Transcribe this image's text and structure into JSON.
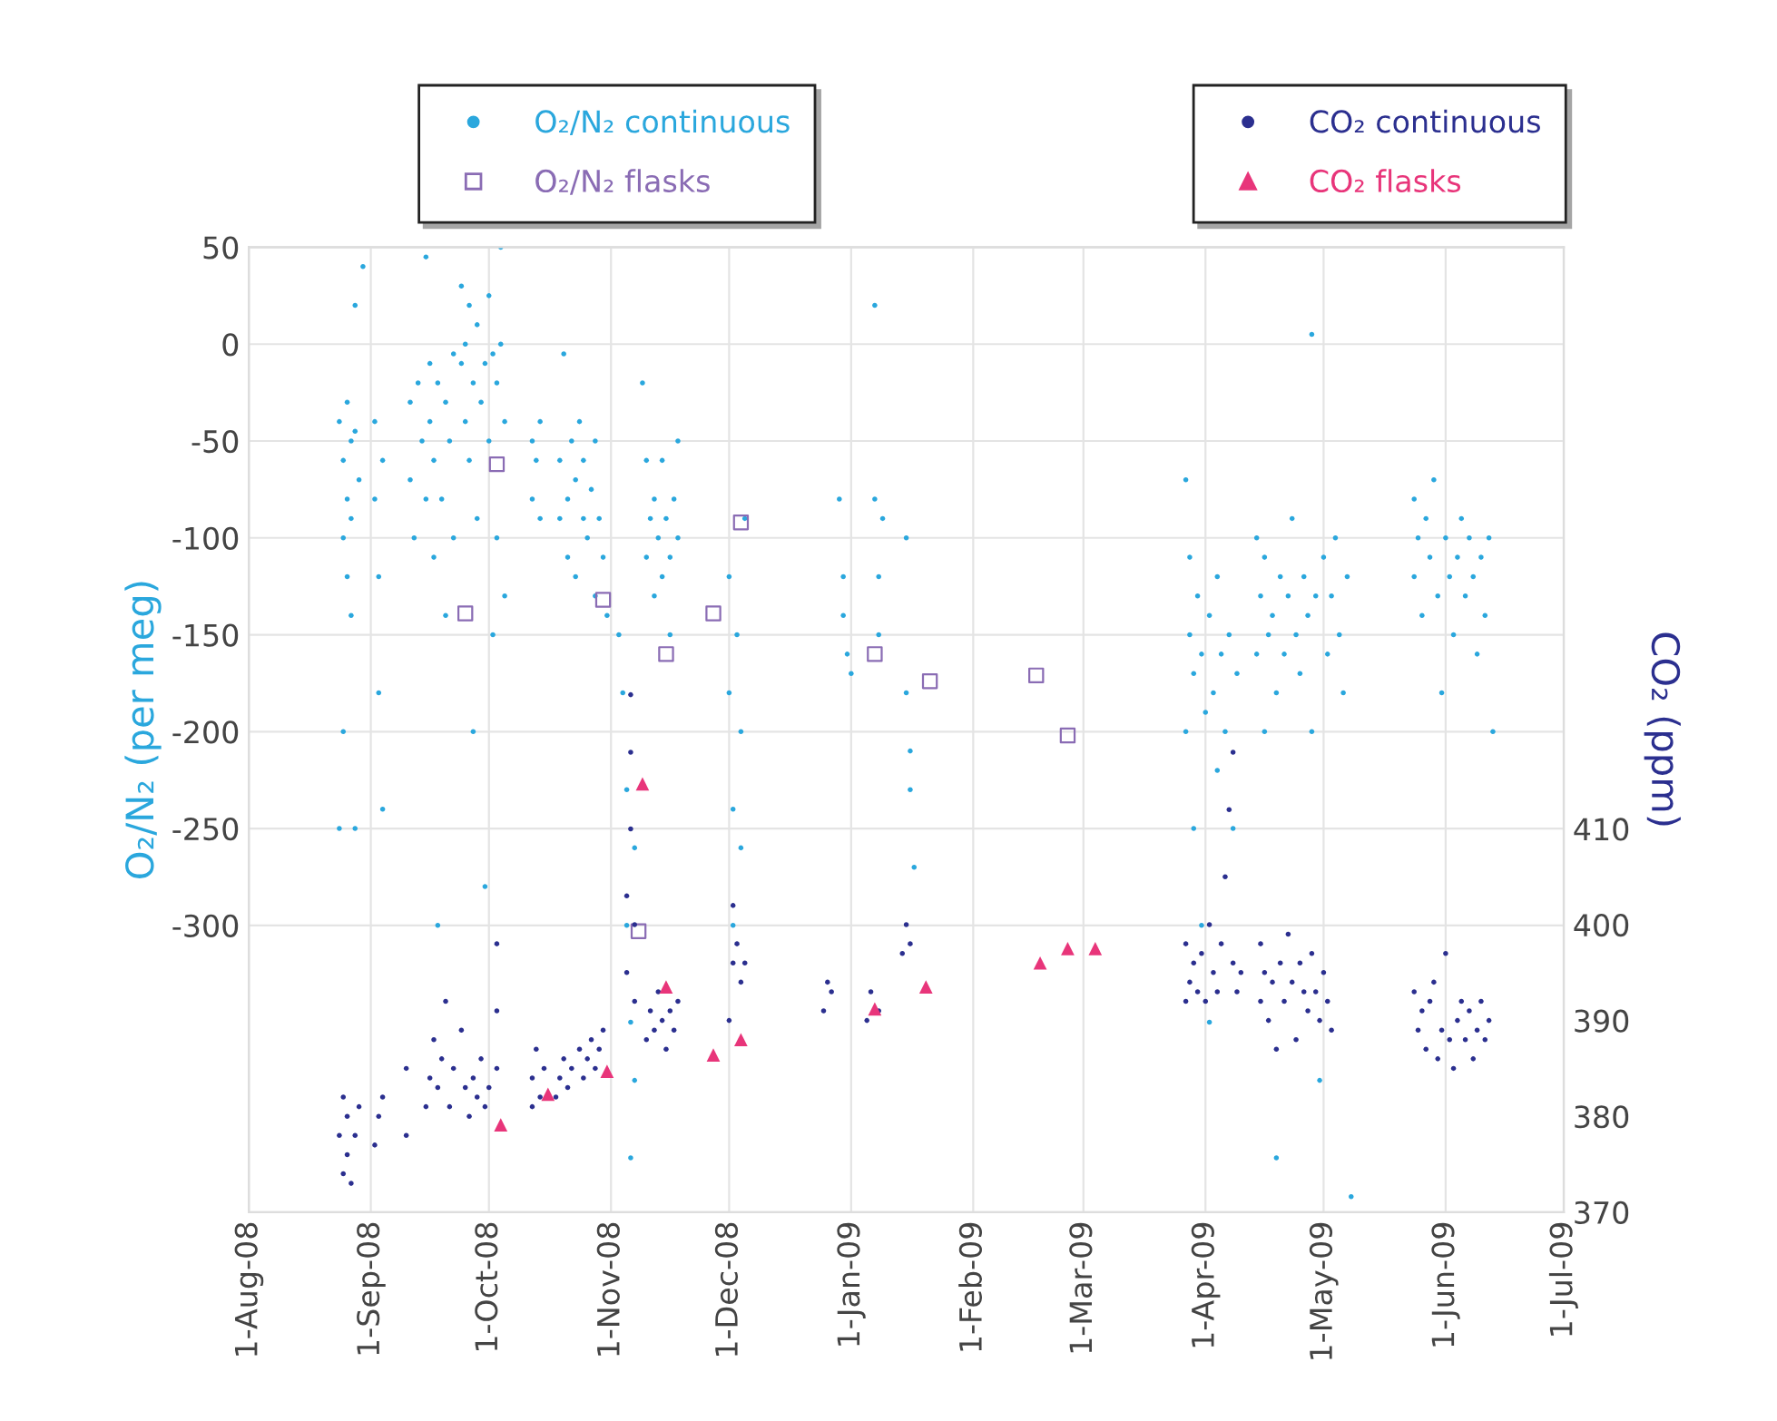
{
  "chart_data": {
    "type": "scatter",
    "ylabel": "O₂/N₂ (per meg)",
    "y2label": "CO₂ (ppm)",
    "xlim": [
      "2008-08-01",
      "2009-07-01"
    ],
    "xticks": [
      {
        "value": "2008-08-01",
        "label": "1-Aug-08"
      },
      {
        "value": "2008-09-01",
        "label": "1-Sep-08"
      },
      {
        "value": "2008-10-01",
        "label": "1-Oct-08"
      },
      {
        "value": "2008-11-01",
        "label": "1-Nov-08"
      },
      {
        "value": "2008-12-01",
        "label": "1-Dec-08"
      },
      {
        "value": "2009-01-01",
        "label": "1-Jan-09"
      },
      {
        "value": "2009-02-01",
        "label": "1-Feb-09"
      },
      {
        "value": "2009-03-01",
        "label": "1-Mar-09"
      },
      {
        "value": "2009-04-01",
        "label": "1-Apr-09"
      },
      {
        "value": "2009-05-01",
        "label": "1-May-09"
      },
      {
        "value": "2009-06-01",
        "label": "1-Jun-09"
      },
      {
        "value": "2009-07-01",
        "label": "1-Jul-09"
      }
    ],
    "ylim": [
      -448,
      50
    ],
    "yticks": [
      50,
      0,
      -50,
      -100,
      -150,
      -200,
      -250,
      -300
    ],
    "y2lim": [
      370,
      470.7
    ],
    "y2ticks": [
      370,
      380,
      390,
      400,
      410
    ],
    "grid": true,
    "legend": "top",
    "series": [
      {
        "name": "O₂/N₂ continuous",
        "color": "#2aa7dd",
        "marker": "circle",
        "x": [
          "2008-08-24",
          "2008-08-24",
          "2008-08-25",
          "2008-08-25",
          "2008-08-25",
          "2008-08-26",
          "2008-08-26",
          "2008-08-26",
          "2008-08-27",
          "2008-08-27",
          "2008-08-27",
          "2008-08-28",
          "2008-08-28",
          "2008-08-28",
          "2008-08-29",
          "2008-08-30",
          "2008-09-02",
          "2008-09-02",
          "2008-09-03",
          "2008-09-03",
          "2008-09-04",
          "2008-09-04",
          "2008-09-11",
          "2008-09-11",
          "2008-09-12",
          "2008-09-13",
          "2008-09-14",
          "2008-09-15",
          "2008-09-15",
          "2008-09-16",
          "2008-09-16",
          "2008-09-17",
          "2008-09-17",
          "2008-09-18",
          "2008-09-18",
          "2008-09-19",
          "2008-09-20",
          "2008-09-20",
          "2008-09-21",
          "2008-09-22",
          "2008-09-22",
          "2008-09-24",
          "2008-09-24",
          "2008-09-25",
          "2008-09-25",
          "2008-09-26",
          "2008-09-26",
          "2008-09-27",
          "2008-09-27",
          "2008-09-28",
          "2008-09-28",
          "2008-09-29",
          "2008-09-30",
          "2008-09-30",
          "2008-10-01",
          "2008-10-01",
          "2008-10-02",
          "2008-10-02",
          "2008-10-03",
          "2008-10-03",
          "2008-10-04",
          "2008-10-04",
          "2008-10-05",
          "2008-10-05",
          "2008-10-12",
          "2008-10-12",
          "2008-10-13",
          "2008-10-14",
          "2008-10-14",
          "2008-10-19",
          "2008-10-19",
          "2008-10-20",
          "2008-10-21",
          "2008-10-21",
          "2008-10-22",
          "2008-10-23",
          "2008-10-23",
          "2008-10-24",
          "2008-10-25",
          "2008-10-25",
          "2008-10-26",
          "2008-10-27",
          "2008-10-28",
          "2008-10-28",
          "2008-10-29",
          "2008-10-30",
          "2008-10-31",
          "2008-11-03",
          "2008-11-04",
          "2008-11-05",
          "2008-11-05",
          "2008-11-06",
          "2008-11-06",
          "2008-11-07",
          "2008-11-07",
          "2008-11-09",
          "2008-11-10",
          "2008-11-10",
          "2008-11-11",
          "2008-11-12",
          "2008-11-12",
          "2008-11-13",
          "2008-11-14",
          "2008-11-14",
          "2008-11-15",
          "2008-11-16",
          "2008-11-16",
          "2008-11-17",
          "2008-11-18",
          "2008-11-18",
          "2008-12-01",
          "2008-12-01",
          "2008-12-02",
          "2008-12-02",
          "2008-12-03",
          "2008-12-04",
          "2008-12-04",
          "2008-12-05",
          "2008-12-29",
          "2008-12-30",
          "2008-12-30",
          "2008-12-31",
          "2009-01-01",
          "2009-01-07",
          "2009-01-07",
          "2009-01-08",
          "2009-01-08",
          "2009-01-09",
          "2009-01-15",
          "2009-01-15",
          "2009-01-16",
          "2009-01-16",
          "2009-01-17",
          "2009-03-27",
          "2009-03-27",
          "2009-03-28",
          "2009-03-28",
          "2009-03-29",
          "2009-03-29",
          "2009-03-30",
          "2009-03-31",
          "2009-03-31",
          "2009-04-01",
          "2009-04-02",
          "2009-04-02",
          "2009-04-03",
          "2009-04-04",
          "2009-04-04",
          "2009-04-05",
          "2009-04-06",
          "2009-04-07",
          "2009-04-08",
          "2009-04-09",
          "2009-04-14",
          "2009-04-14",
          "2009-04-15",
          "2009-04-16",
          "2009-04-16",
          "2009-04-17",
          "2009-04-18",
          "2009-04-19",
          "2009-04-19",
          "2009-04-20",
          "2009-04-21",
          "2009-04-22",
          "2009-04-23",
          "2009-04-24",
          "2009-04-25",
          "2009-04-26",
          "2009-04-27",
          "2009-04-28",
          "2009-04-28",
          "2009-04-29",
          "2009-04-30",
          "2009-05-01",
          "2009-05-02",
          "2009-05-03",
          "2009-05-04",
          "2009-05-05",
          "2009-05-06",
          "2009-05-07",
          "2009-05-08",
          "2009-05-24",
          "2009-05-24",
          "2009-05-25",
          "2009-05-26",
          "2009-05-27",
          "2009-05-28",
          "2009-05-29",
          "2009-05-30",
          "2009-05-31",
          "2009-06-01",
          "2009-06-02",
          "2009-06-03",
          "2009-06-04",
          "2009-06-05",
          "2009-06-06",
          "2009-06-07",
          "2009-06-08",
          "2009-06-09",
          "2009-06-10",
          "2009-06-11",
          "2009-06-12",
          "2009-06-13"
        ],
        "values": [
          -40,
          -250,
          -60,
          -100,
          -200,
          -30,
          -80,
          -120,
          -50,
          -90,
          -140,
          -45,
          20,
          -250,
          -70,
          40,
          -40,
          -80,
          -120,
          -180,
          -60,
          -240,
          -30,
          -70,
          -100,
          -20,
          -50,
          -80,
          45,
          -10,
          -40,
          -110,
          -60,
          -20,
          -300,
          -80,
          -30,
          -140,
          -50,
          -100,
          -5,
          30,
          -10,
          -40,
          0,
          20,
          -60,
          -20,
          -200,
          10,
          -90,
          -30,
          -10,
          -280,
          25,
          -50,
          -5,
          -150,
          -20,
          -100,
          50,
          0,
          -40,
          -130,
          -50,
          -80,
          -60,
          -90,
          -40,
          -60,
          -90,
          -5,
          -80,
          -110,
          -50,
          -70,
          -120,
          -40,
          -90,
          -60,
          -100,
          -75,
          -130,
          -50,
          -90,
          -110,
          -140,
          -150,
          -180,
          -230,
          -300,
          -350,
          -420,
          -260,
          -380,
          -20,
          -60,
          -110,
          -90,
          -130,
          -80,
          -100,
          -120,
          -60,
          -90,
          -110,
          -150,
          -80,
          -100,
          -50,
          -120,
          -180,
          -240,
          -300,
          -150,
          -200,
          -260,
          -90,
          -80,
          -120,
          -140,
          -160,
          -170,
          20,
          -80,
          -120,
          -150,
          -90,
          -100,
          -180,
          -210,
          -230,
          -270,
          -70,
          -200,
          -110,
          -150,
          -170,
          -250,
          -130,
          -160,
          -300,
          -190,
          -140,
          -350,
          -180,
          -220,
          -120,
          -160,
          -200,
          -150,
          -250,
          -170,
          -100,
          -160,
          -130,
          -200,
          -110,
          -150,
          -140,
          -180,
          -420,
          -120,
          -160,
          -130,
          -90,
          -150,
          -170,
          -120,
          -140,
          5,
          -200,
          -130,
          -380,
          -110,
          -160,
          -130,
          -100,
          -150,
          -180,
          -120,
          -440,
          -80,
          -120,
          -100,
          -140,
          -90,
          -110,
          -70,
          -130,
          -180,
          -100,
          -120,
          -150,
          -110,
          -90,
          -130,
          -100,
          -120,
          -160,
          -110,
          -140,
          -100,
          -200
        ]
      },
      {
        "name": "O₂/N₂ flasks",
        "color": "#8a6cb4",
        "marker": "square",
        "x": [
          "2008-09-25",
          "2008-10-03",
          "2008-10-30",
          "2008-11-08",
          "2008-11-15",
          "2008-11-27",
          "2008-12-04",
          "2009-01-07",
          "2009-01-21",
          "2009-02-17",
          "2009-02-25"
        ],
        "values": [
          -139,
          -62,
          -132,
          -303,
          -160,
          -139,
          -92,
          -160,
          -174,
          -171,
          -202
        ]
      },
      {
        "name": "CO₂ continuous",
        "color": "#2b2f8f",
        "marker": "circle",
        "axis": "y2",
        "x": [
          "2008-08-24",
          "2008-08-25",
          "2008-08-25",
          "2008-08-26",
          "2008-08-26",
          "2008-08-27",
          "2008-08-28",
          "2008-08-29",
          "2008-09-02",
          "2008-09-03",
          "2008-09-04",
          "2008-09-10",
          "2008-09-10",
          "2008-09-15",
          "2008-09-16",
          "2008-09-17",
          "2008-09-18",
          "2008-09-19",
          "2008-09-20",
          "2008-09-21",
          "2008-09-22",
          "2008-09-24",
          "2008-09-25",
          "2008-09-26",
          "2008-09-27",
          "2008-09-28",
          "2008-09-29",
          "2008-09-30",
          "2008-10-01",
          "2008-10-03",
          "2008-10-03",
          "2008-10-03",
          "2008-10-12",
          "2008-10-12",
          "2008-10-13",
          "2008-10-14",
          "2008-10-15",
          "2008-10-18",
          "2008-10-19",
          "2008-10-20",
          "2008-10-21",
          "2008-10-22",
          "2008-10-24",
          "2008-10-25",
          "2008-10-26",
          "2008-10-27",
          "2008-10-28",
          "2008-10-29",
          "2008-10-30",
          "2008-11-05",
          "2008-11-05",
          "2008-11-06",
          "2008-11-06",
          "2008-11-06",
          "2008-11-07",
          "2008-11-07",
          "2008-11-10",
          "2008-11-11",
          "2008-11-12",
          "2008-11-13",
          "2008-11-14",
          "2008-11-15",
          "2008-11-16",
          "2008-11-17",
          "2008-11-18",
          "2008-12-01",
          "2008-12-02",
          "2008-12-02",
          "2008-12-03",
          "2008-12-04",
          "2008-12-05",
          "2008-12-25",
          "2008-12-26",
          "2008-12-27",
          "2009-01-05",
          "2009-01-06",
          "2009-01-08",
          "2009-01-14",
          "2009-01-15",
          "2009-01-16",
          "2009-03-27",
          "2009-03-27",
          "2009-03-28",
          "2009-03-29",
          "2009-03-30",
          "2009-03-31",
          "2009-04-01",
          "2009-04-02",
          "2009-04-03",
          "2009-04-04",
          "2009-04-05",
          "2009-04-06",
          "2009-04-07",
          "2009-04-08",
          "2009-04-08",
          "2009-04-09",
          "2009-04-10",
          "2009-04-15",
          "2009-04-15",
          "2009-04-16",
          "2009-04-17",
          "2009-04-18",
          "2009-04-19",
          "2009-04-20",
          "2009-04-21",
          "2009-04-22",
          "2009-04-23",
          "2009-04-24",
          "2009-04-25",
          "2009-04-26",
          "2009-04-27",
          "2009-04-28",
          "2009-04-29",
          "2009-04-30",
          "2009-05-01",
          "2009-05-02",
          "2009-05-03",
          "2009-05-24",
          "2009-05-25",
          "2009-05-26",
          "2009-05-27",
          "2009-05-28",
          "2009-05-29",
          "2009-05-30",
          "2009-05-31",
          "2009-06-01",
          "2009-06-02",
          "2009-06-03",
          "2009-06-04",
          "2009-06-05",
          "2009-06-06",
          "2009-06-07",
          "2009-06-08",
          "2009-06-09",
          "2009-06-10",
          "2009-06-11",
          "2009-06-12"
        ],
        "values": [
          378,
          374,
          382,
          376,
          380,
          373,
          378,
          381,
          377,
          380,
          382,
          378,
          385,
          381,
          384,
          388,
          383,
          386,
          392,
          381,
          385,
          389,
          383,
          380,
          384,
          382,
          386,
          381,
          383,
          385,
          391,
          398,
          381,
          384,
          387,
          382,
          385,
          382,
          384,
          386,
          383,
          385,
          387,
          384,
          386,
          388,
          385,
          387,
          389,
          395,
          403,
          410,
          418,
          424,
          400,
          392,
          388,
          391,
          389,
          393,
          390,
          387,
          391,
          389,
          392,
          390,
          396,
          402,
          398,
          394,
          396,
          391,
          394,
          393,
          390,
          393,
          391,
          397,
          400,
          398,
          392,
          398,
          394,
          396,
          393,
          397,
          392,
          400,
          395,
          393,
          398,
          405,
          412,
          418,
          396,
          393,
          395,
          392,
          398,
          395,
          390,
          394,
          387,
          396,
          392,
          399,
          394,
          388,
          396,
          393,
          391,
          397,
          393,
          390,
          395,
          392,
          389,
          393,
          389,
          391,
          387,
          392,
          394,
          386,
          389,
          397,
          388,
          385,
          390,
          392,
          388,
          391,
          386,
          389,
          392,
          388,
          390
        ]
      },
      {
        "name": "CO₂ flasks",
        "color": "#e8357a",
        "marker": "triangle",
        "axis": "y2",
        "x": [
          "2008-10-04",
          "2008-10-16",
          "2008-10-31",
          "2008-11-09",
          "2008-11-15",
          "2008-11-27",
          "2008-12-04",
          "2009-01-07",
          "2009-01-20",
          "2009-02-18",
          "2009-02-25",
          "2009-03-04"
        ],
        "values": [
          379.1,
          382.3,
          384.7,
          414.7,
          393.5,
          386.4,
          388.0,
          391.2,
          393.5,
          396.0,
          397.5,
          397.5
        ]
      }
    ]
  }
}
